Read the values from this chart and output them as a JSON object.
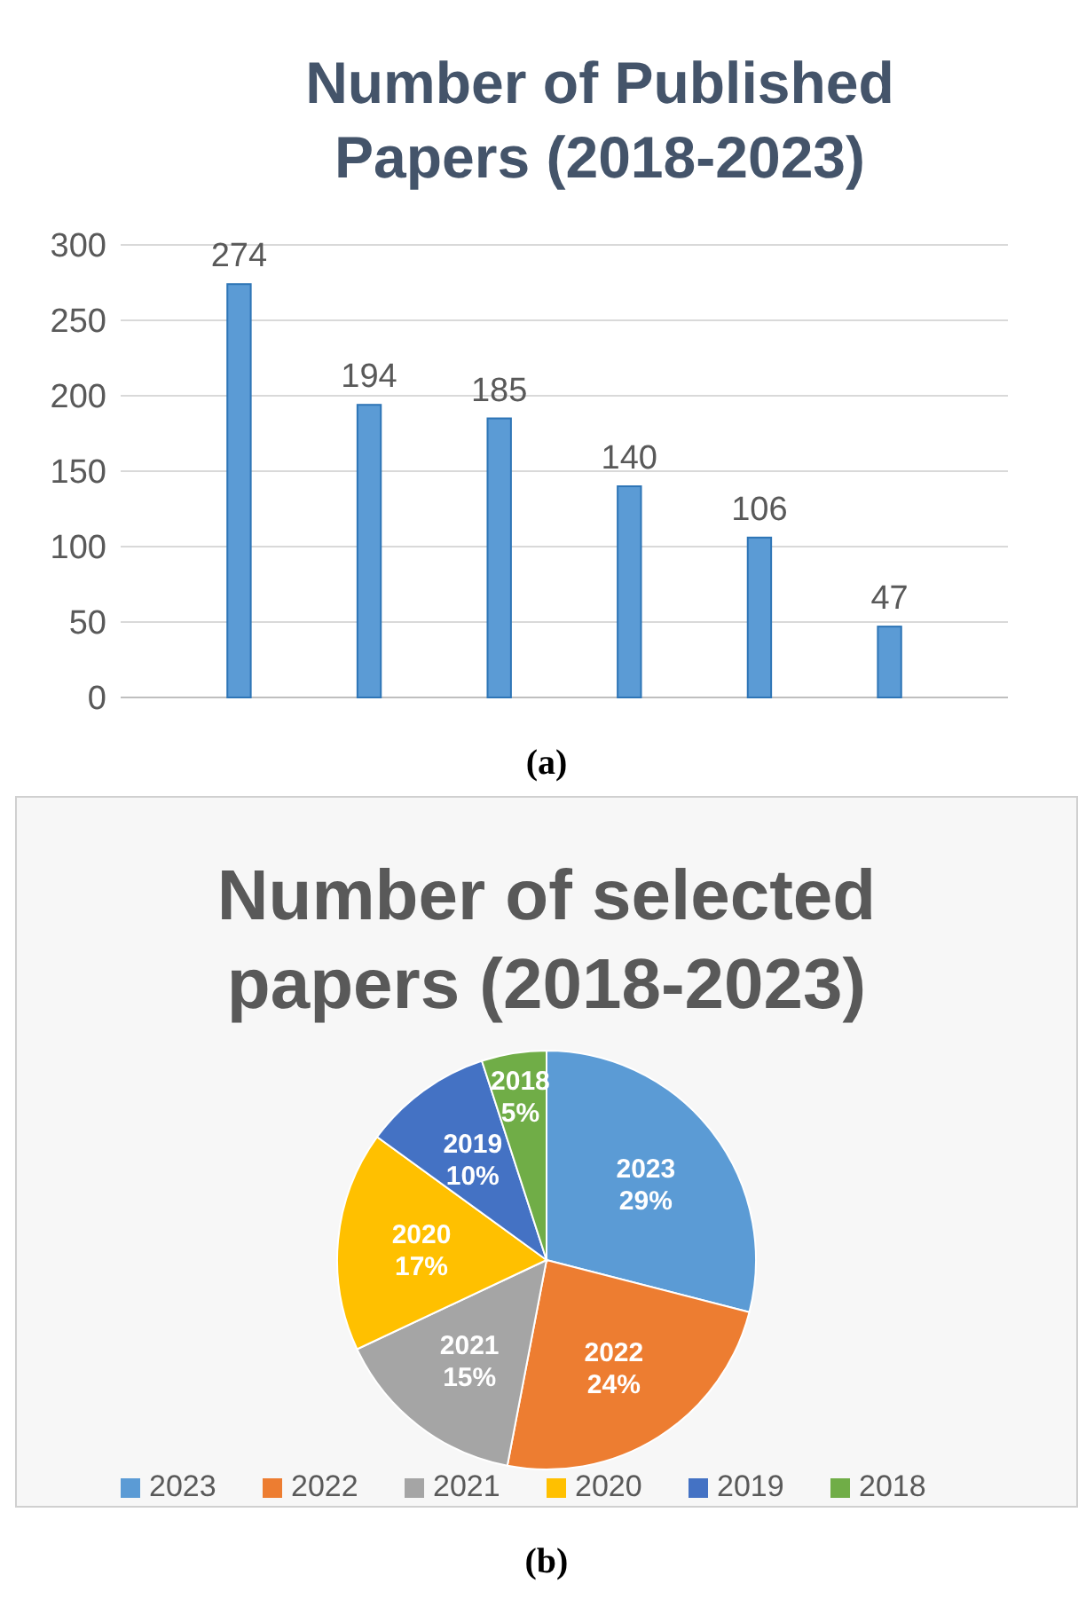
{
  "chart_data": [
    {
      "type": "bar",
      "title": "Number of Published Papers (2018-2023)",
      "categories": [
        null,
        null,
        null,
        null,
        null,
        null
      ],
      "values": [
        274,
        194,
        185,
        140,
        106,
        47
      ],
      "color": "#5b9bd5",
      "ylim": [
        0,
        300
      ],
      "yticks": [
        0,
        50,
        100,
        150,
        200,
        250,
        300
      ],
      "grid": "y",
      "data_labels": true,
      "annotations": [
        "(a)"
      ]
    },
    {
      "type": "pie",
      "title": "Number of selected papers (2018-2023)",
      "categories": [
        "2023",
        "2022",
        "2021",
        "2020",
        "2019",
        "2018"
      ],
      "values": [
        29,
        24,
        15,
        17,
        10,
        5
      ],
      "colors": [
        "#5b9bd5",
        "#ed7d31",
        "#a5a5a5",
        "#ffc000",
        "#4472c4",
        "#70ad47"
      ],
      "value_labels": [
        "29%",
        "24%",
        "15%",
        "17%",
        "10%",
        "5%"
      ],
      "legend": "bottom",
      "annotations": [
        "(b)"
      ]
    }
  ]
}
